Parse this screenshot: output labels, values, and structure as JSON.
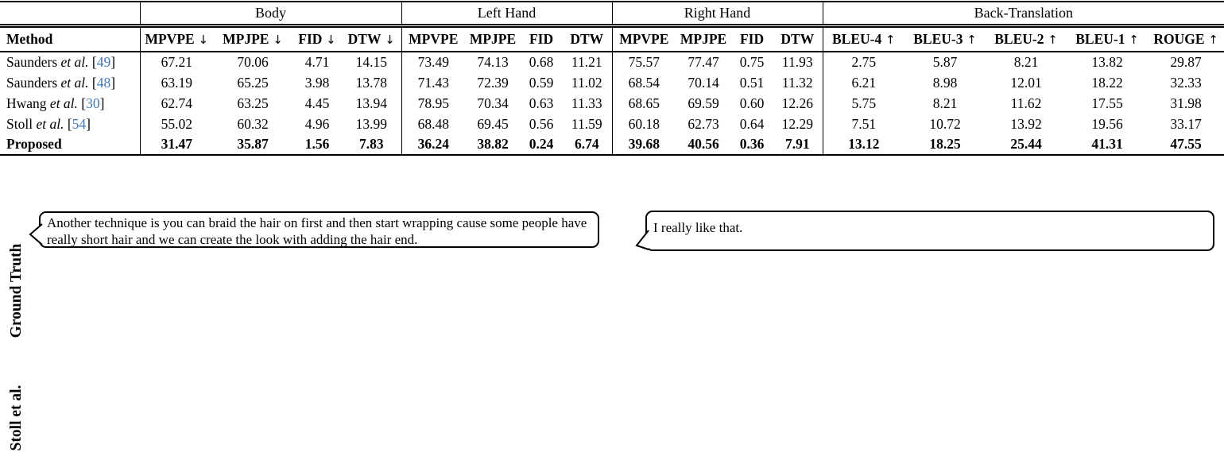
{
  "colors": {
    "citation_blue": "#4478B8"
  },
  "table": {
    "method_header": "Method",
    "groups": [
      {
        "label": "",
        "span": 1
      },
      {
        "label": "Body",
        "span": 4
      },
      {
        "label": "Left Hand",
        "span": 4
      },
      {
        "label": "Right Hand",
        "span": 4
      },
      {
        "label": "Back-Translation",
        "span": 5
      }
    ],
    "columns": [
      {
        "label": "MPVPE",
        "arrow": "↓"
      },
      {
        "label": "MPJPE",
        "arrow": "↓"
      },
      {
        "label": "FID",
        "arrow": "↓"
      },
      {
        "label": "DTW",
        "arrow": "↓"
      },
      {
        "label": "MPVPE",
        "arrow": ""
      },
      {
        "label": "MPJPE",
        "arrow": ""
      },
      {
        "label": "FID",
        "arrow": ""
      },
      {
        "label": "DTW",
        "arrow": ""
      },
      {
        "label": "MPVPE",
        "arrow": ""
      },
      {
        "label": "MPJPE",
        "arrow": ""
      },
      {
        "label": "FID",
        "arrow": ""
      },
      {
        "label": "DTW",
        "arrow": ""
      },
      {
        "label": "BLEU-4",
        "arrow": "↑"
      },
      {
        "label": "BLEU-3",
        "arrow": "↑"
      },
      {
        "label": "BLEU-2",
        "arrow": "↑"
      },
      {
        "label": "BLEU-1",
        "arrow": "↑"
      },
      {
        "label": "ROUGE",
        "arrow": "↑"
      }
    ],
    "rows": [
      {
        "method": {
          "name": "Saunders",
          "etal": "et al.",
          "cite": "49"
        },
        "bold": false,
        "values": [
          "67.21",
          "70.06",
          "4.71",
          "14.15",
          "73.49",
          "74.13",
          "0.68",
          "11.21",
          "75.57",
          "77.47",
          "0.75",
          "11.93",
          "2.75",
          "5.87",
          "8.21",
          "13.82",
          "29.87"
        ]
      },
      {
        "method": {
          "name": "Saunders",
          "etal": "et al.",
          "cite": "48"
        },
        "bold": false,
        "values": [
          "63.19",
          "65.25",
          "3.98",
          "13.78",
          "71.43",
          "72.39",
          "0.59",
          "11.02",
          "68.54",
          "70.14",
          "0.51",
          "11.32",
          "6.21",
          "8.98",
          "12.01",
          "18.22",
          "32.33"
        ]
      },
      {
        "method": {
          "name": "Hwang",
          "etal": "et al.",
          "cite": "30"
        },
        "bold": false,
        "values": [
          "62.74",
          "63.25",
          "4.45",
          "13.94",
          "78.95",
          "70.34",
          "0.63",
          "11.33",
          "68.65",
          "69.59",
          "0.60",
          "12.26",
          "5.75",
          "8.21",
          "11.62",
          "17.55",
          "31.98"
        ]
      },
      {
        "method": {
          "name": "Stoll",
          "etal": "et al.",
          "cite": "54"
        },
        "bold": false,
        "values": [
          "55.02",
          "60.32",
          "4.96",
          "13.99",
          "68.48",
          "69.45",
          "0.56",
          "11.59",
          "60.18",
          "62.73",
          "0.64",
          "12.29",
          "7.51",
          "10.72",
          "13.92",
          "19.56",
          "33.17"
        ]
      },
      {
        "method": {
          "name": "Proposed"
        },
        "bold": true,
        "values": [
          "31.47",
          "35.87",
          "1.56",
          "7.83",
          "36.24",
          "38.82",
          "0.24",
          "6.74",
          "39.68",
          "40.56",
          "0.36",
          "7.91",
          "13.12",
          "18.25",
          "25.44",
          "41.31",
          "47.55"
        ]
      }
    ]
  },
  "figure": {
    "row_labels": [
      {
        "label": "Ground Truth"
      },
      {
        "label": "Stoll et al."
      }
    ],
    "bubbles": [
      {
        "text": "Another technique is you can braid the hair on first and then start wrapping cause some people have really short hair and we can create the look with adding the hair end."
      },
      {
        "text": "I really like that."
      }
    ]
  }
}
